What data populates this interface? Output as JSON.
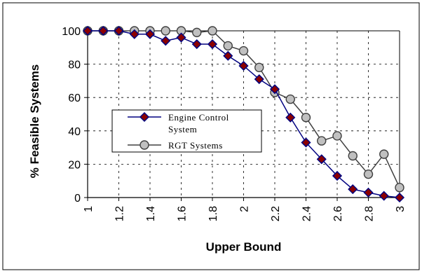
{
  "chart_data": {
    "type": "line",
    "title": "",
    "xlabel": "Upper Bound",
    "ylabel": "% Feasible Systems",
    "x": [
      1,
      1.1,
      1.2,
      1.3,
      1.4,
      1.5,
      1.6,
      1.7,
      1.8,
      1.9,
      2,
      2.1,
      2.2,
      2.3,
      2.4,
      2.5,
      2.6,
      2.7,
      2.8,
      2.9,
      3
    ],
    "xlim": [
      1,
      3
    ],
    "ylim": [
      0,
      100
    ],
    "xticks": [
      "1",
      "1.2",
      "1.4",
      "1.6",
      "1.8",
      "2",
      "2.2",
      "2.4",
      "2.6",
      "2.8",
      "3"
    ],
    "yticks": [
      "0",
      "20",
      "40",
      "60",
      "80",
      "100"
    ],
    "grid": "dashed",
    "legend_position": "center-left",
    "series": [
      {
        "name_lines": [
          "Engine Control",
          "System"
        ],
        "marker": "diamond",
        "color": "#000080",
        "marker_color": "#8b0000",
        "values": [
          100,
          100,
          100,
          98,
          98,
          94,
          96,
          92,
          92,
          85,
          79,
          71,
          65,
          48,
          33,
          23,
          13,
          5,
          3,
          1,
          0
        ]
      },
      {
        "name_lines": [
          "RGT Systems"
        ],
        "marker": "circle",
        "color": "#404040",
        "marker_color": "#c0c0c0",
        "values": [
          100,
          100,
          100,
          100,
          100,
          100,
          100,
          99,
          100,
          91,
          88,
          78,
          63,
          59,
          48,
          34,
          37,
          25,
          14,
          26,
          6
        ]
      }
    ]
  }
}
